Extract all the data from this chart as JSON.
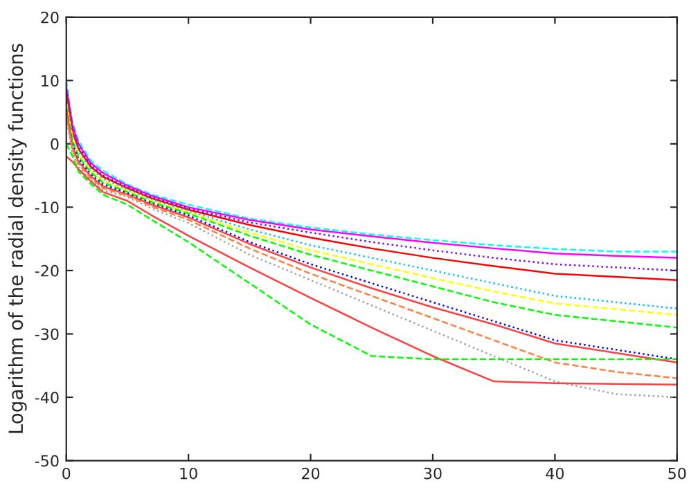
{
  "chart_data": {
    "type": "line",
    "ylabel": "Logarithm of the radial density functions",
    "x": [
      0,
      0.5,
      1,
      2,
      3,
      5,
      7,
      10,
      15,
      20,
      25,
      30,
      35,
      40,
      45,
      50
    ],
    "xlim": [
      0,
      50
    ],
    "xticks": [
      0,
      10,
      20,
      30,
      40,
      50
    ],
    "ylim": [
      -50,
      20
    ],
    "yticks": [
      -50,
      -40,
      -30,
      -20,
      -10,
      0,
      10,
      20
    ],
    "grid": false,
    "legend": false,
    "marker": "none",
    "series": [
      {
        "color": "#00ffff",
        "line_style": "dashed",
        "values": [
          10,
          3.5,
          0.5,
          -2.6,
          -4.2,
          -6.4,
          -8,
          -9.6,
          -11.8,
          -13.2,
          -14.3,
          -15.2,
          -16,
          -16.6,
          -17,
          -17
        ]
      },
      {
        "color": "#ff00ff",
        "line_style": "solid",
        "values": [
          9,
          3,
          0,
          -3,
          -4.6,
          -6.6,
          -8.2,
          -10,
          -12,
          -13.5,
          -14.6,
          -15.6,
          -16.5,
          -17.3,
          -17.7,
          -18
        ]
      },
      {
        "color": "#8000ff",
        "line_style": "dotted",
        "values": [
          8.5,
          2.5,
          -0.4,
          -3.3,
          -5,
          -6.8,
          -8.4,
          -10.2,
          -12.4,
          -14,
          -15.5,
          -16.8,
          -18,
          -19,
          -19.5,
          -20
        ]
      },
      {
        "color": "#ff0000",
        "line_style": "solid",
        "values": [
          8,
          2,
          -0.8,
          -3.6,
          -5.2,
          -7,
          -8.6,
          -10.4,
          -12.8,
          -14.8,
          -16.5,
          -18,
          -19.3,
          -20.5,
          -21,
          -21.5
        ]
      },
      {
        "color": "#00c0ff",
        "line_style": "dotted",
        "values": [
          7,
          1.5,
          -1.2,
          -3.9,
          -5.5,
          -7.2,
          -8.8,
          -10.6,
          -13.5,
          -16,
          -18,
          -20,
          -22,
          -24,
          -25,
          -26
        ]
      },
      {
        "color": "#ffff00",
        "line_style": "dashed",
        "values": [
          6.5,
          1,
          -1.6,
          -4.2,
          -5.8,
          -7.4,
          -9,
          -10.8,
          -14,
          -16.8,
          -19,
          -21.2,
          -23.3,
          -25.2,
          -26.1,
          -27
        ]
      },
      {
        "color": "#00ff00",
        "line_style": "dashed",
        "values": [
          6,
          0.5,
          -2,
          -4.5,
          -6.1,
          -7.6,
          -9.2,
          -11,
          -14.5,
          -17.5,
          -20,
          -22.5,
          -25,
          -27,
          -28,
          -29
        ]
      },
      {
        "color": "#0000ff",
        "line_style": "dotted",
        "values": [
          5,
          0,
          -2.4,
          -4.8,
          -6.4,
          -7.8,
          -9.4,
          -11.3,
          -15.5,
          -19,
          -22,
          -25,
          -28,
          -31,
          -32.5,
          -34
        ]
      },
      {
        "color": "#ff4040",
        "line_style": "solid",
        "values": [
          5.5,
          -0.5,
          -2.8,
          -5.1,
          -6.7,
          -8,
          -9.6,
          -11.6,
          -15.8,
          -19.5,
          -22.8,
          -25.8,
          -28.5,
          -31.5,
          -33,
          -34.5
        ]
      },
      {
        "color": "#ff8040",
        "line_style": "dashed",
        "values": [
          4.5,
          -1,
          -3.2,
          -5.4,
          -7,
          -8.2,
          -9.9,
          -12,
          -16.5,
          -20.5,
          -24,
          -27.5,
          -31,
          -34.5,
          -36,
          -37
        ]
      },
      {
        "color": "#a0a0a0",
        "line_style": "dotted",
        "values": [
          4,
          -1.5,
          -3.6,
          -5.7,
          -7.3,
          -8.4,
          -10.2,
          -12.5,
          -17.5,
          -21.5,
          -25.5,
          -29.5,
          -33.5,
          -37.5,
          -39.5,
          -40
        ]
      },
      {
        "color": "#ff4040",
        "line_style": "solid",
        "values": [
          -2,
          -2.8,
          -4,
          -5.9,
          -7.6,
          -9,
          -11.3,
          -14.5,
          -19.5,
          -24.3,
          -29,
          -33.5,
          -37.5,
          -37.8,
          -37.9,
          -38
        ]
      },
      {
        "color": "#00ff00",
        "line_style": "dashed",
        "values": [
          0,
          -1.9,
          -4.4,
          -6.3,
          -8,
          -9.6,
          -12,
          -15.5,
          -22,
          -28.5,
          -33.5,
          -34,
          -34,
          -34,
          -34,
          -34
        ]
      }
    ]
  }
}
